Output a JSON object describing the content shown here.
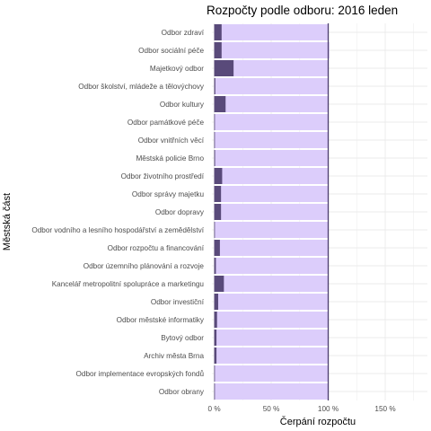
{
  "chart_data": {
    "type": "bar",
    "orientation": "horizontal",
    "title": "Rozpočty podle odboru: 2016 leden",
    "xlabel": "Čerpání rozpočtu",
    "ylabel": "Městská část",
    "categories": [
      "Odbor zdraví",
      "Odbor sociální péče",
      "Majetkový odbor",
      "Odbor školství, mládeže a tělovýchovy",
      "Odbor kultury",
      "Odbor památkové péče",
      "Odbor vnitřních věcí",
      "Městská policie Brno",
      "Odbor životního prostředí",
      "Odbor správy majetku",
      "Odbor dopravy",
      "Odbor vodního a lesního hospodářství a zemědělství",
      "Odbor rozpočtu a financování",
      "Odbor územního plánování a rozvoje",
      "Kancelář metropolitní spolupráce a marketingu",
      "Odbor investiční",
      "Odbor městské informatiky",
      "Bytový odbor",
      "Archiv města Brna",
      "Odbor implementace evropských fondů",
      "Odbor obrany"
    ],
    "series": [
      {
        "values": [
          100,
          101,
          100,
          100,
          100,
          100,
          100,
          100,
          100,
          100,
          100,
          100,
          100,
          100,
          100,
          100,
          100,
          100,
          100,
          100,
          100
        ]
      },
      {
        "values": [
          6.5,
          6.5,
          17,
          1,
          10,
          0.3,
          0.5,
          0.8,
          7,
          6,
          6,
          0.3,
          5,
          1.5,
          8.5,
          3.5,
          2.5,
          2,
          2,
          0.3,
          0.3
        ]
      }
    ],
    "xlim": [
      -2,
      187
    ],
    "xticks": [
      0,
      50,
      100,
      150
    ],
    "xtick_labels": [
      "0 %",
      "50 %",
      "100 %",
      "150 %"
    ],
    "reference_line": 100,
    "grid": true,
    "colors": {
      "budget": "#dccdfb",
      "spent": "#594a7a",
      "reference": "#4b3d6e",
      "grid": "#ebebeb"
    }
  }
}
